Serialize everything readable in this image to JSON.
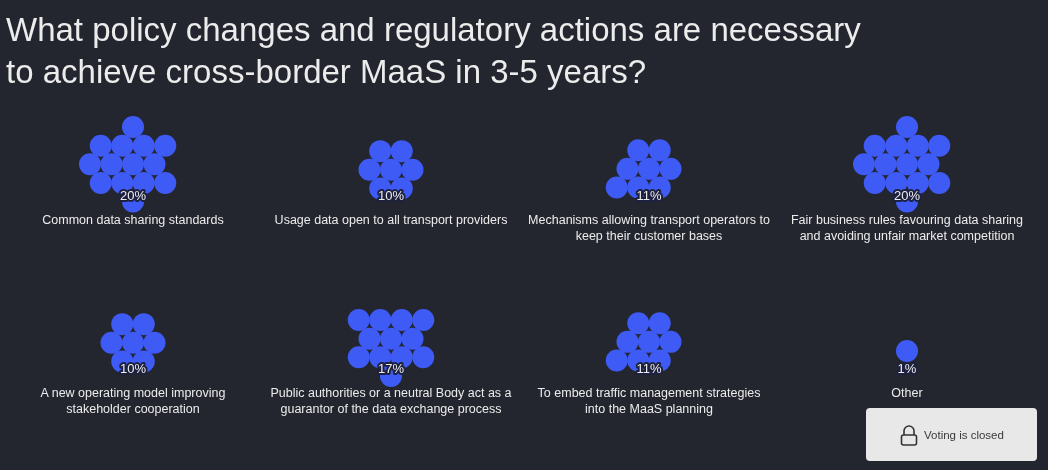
{
  "chart_data": {
    "type": "other",
    "title": "What policy changes and regulatory actions are necessary to achieve cross-border MaaS in 3-5 years?",
    "categories": [
      "Common data sharing standards",
      "Usage data open to all transport providers",
      "Mechanisms allowing transport operators to keep their customer bases",
      "Fair business rules favouring data sharing and avoiding unfair market competition",
      "A new operating model improving stakeholder cooperation",
      "Public authorities or a neutral Body act as a guarantor of the data exchange process",
      "To embed traffic management strategies into the MaaS planning",
      "Other"
    ],
    "values": [
      20,
      10,
      11,
      20,
      10,
      17,
      11,
      1
    ],
    "value_labels": [
      "20%",
      "10%",
      "11%",
      "20%",
      "10%",
      "17%",
      "11%",
      "1%"
    ],
    "color": "#3f5bf6",
    "annotations": [
      "Voting is closed"
    ]
  }
}
